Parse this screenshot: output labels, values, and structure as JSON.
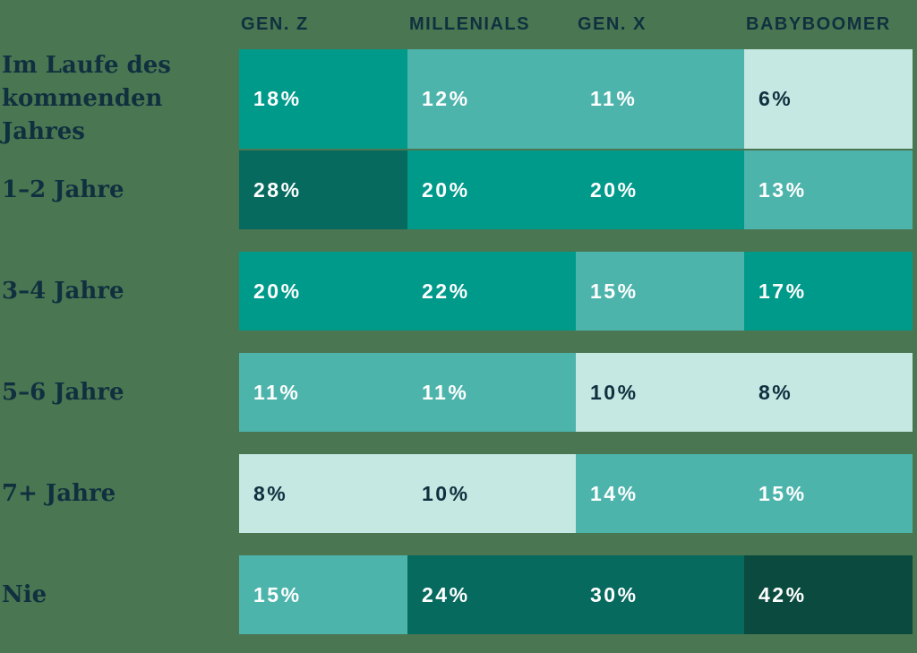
{
  "chart_data": {
    "type": "heatmap",
    "columns": [
      "GEN. Z",
      "MILLENIALS",
      "GEN. X",
      "BABYBOOMER"
    ],
    "rows": [
      {
        "label": "Im Laufe des kommenden Jahres",
        "values": [
          18,
          12,
          11,
          6
        ]
      },
      {
        "label": "1–2 Jahre",
        "values": [
          28,
          20,
          20,
          13
        ]
      },
      {
        "label": "3–4 Jahre",
        "values": [
          20,
          22,
          15,
          17
        ]
      },
      {
        "label": "5–6 Jahre",
        "values": [
          11,
          11,
          10,
          8
        ]
      },
      {
        "label": "7+ Jahre",
        "values": [
          8,
          10,
          14,
          15
        ]
      },
      {
        "label": "Nie",
        "values": [
          15,
          24,
          30,
          42
        ]
      }
    ],
    "unit": "%",
    "legend_position": "none",
    "color_scale": [
      {
        "max": 10,
        "bg": "#c5e8e2",
        "text": "#10303f"
      },
      {
        "max": 15,
        "bg": "#4db4ac",
        "text": "#ffffff"
      },
      {
        "max": 22,
        "bg": "#009a8b",
        "text": "#ffffff"
      },
      {
        "max": 30,
        "bg": "#066a5e",
        "text": "#ffffff"
      },
      {
        "max": 100,
        "bg": "#0b4b3f",
        "text": "#ffffff"
      }
    ],
    "colors": {
      "background": "#4a7652",
      "header_text": "#10303f",
      "row_label_text": "#10303f"
    }
  }
}
